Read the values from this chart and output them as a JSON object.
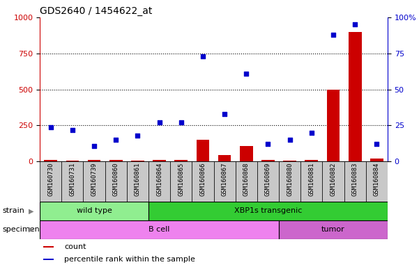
{
  "title": "GDS2640 / 1454622_at",
  "samples": [
    "GSM160730",
    "GSM160731",
    "GSM160739",
    "GSM160860",
    "GSM160861",
    "GSM160864",
    "GSM160865",
    "GSM160866",
    "GSM160867",
    "GSM160868",
    "GSM160869",
    "GSM160880",
    "GSM160881",
    "GSM160882",
    "GSM160883",
    "GSM160884"
  ],
  "counts": [
    10,
    8,
    12,
    10,
    8,
    10,
    12,
    150,
    45,
    110,
    10,
    8,
    10,
    500,
    900,
    20
  ],
  "percentile": [
    24,
    22,
    11,
    15,
    18,
    27,
    27,
    73,
    33,
    61,
    12,
    15,
    20,
    88,
    95,
    12
  ],
  "bar_color": "#cc0000",
  "dot_color": "#0000cc",
  "ylim_left": [
    0,
    1000
  ],
  "ylim_right": [
    0,
    100
  ],
  "yticks_left": [
    0,
    250,
    500,
    750,
    1000
  ],
  "yticks_right": [
    0,
    25,
    50,
    75,
    100
  ],
  "strain_groups": [
    {
      "label": "wild type",
      "start": 0,
      "end": 4,
      "color": "#90ee90"
    },
    {
      "label": "XBP1s transgenic",
      "start": 5,
      "end": 15,
      "color": "#33cc33"
    }
  ],
  "specimen_groups": [
    {
      "label": "B cell",
      "start": 0,
      "end": 10,
      "color": "#ee82ee"
    },
    {
      "label": "tumor",
      "start": 11,
      "end": 15,
      "color": "#cc66cc"
    }
  ],
  "legend_items": [
    {
      "label": "count",
      "color": "#cc0000"
    },
    {
      "label": "percentile rank within the sample",
      "color": "#0000cc"
    }
  ],
  "tick_bg_color": "#c8c8c8",
  "plot_bg": "#ffffff",
  "fig_bg": "#ffffff"
}
